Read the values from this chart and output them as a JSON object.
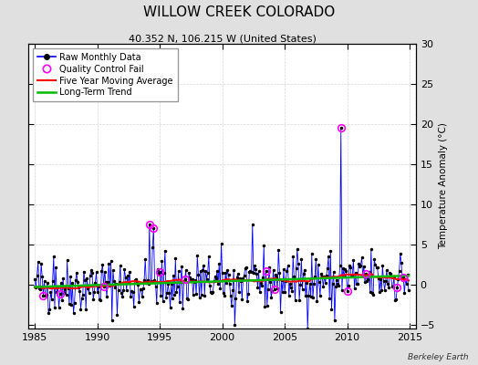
{
  "title": "WILLOW CREEK COLORADO",
  "subtitle": "40.352 N, 106.215 W (United States)",
  "ylabel": "Temperature Anomaly (°C)",
  "watermark": "Berkeley Earth",
  "xlim": [
    1984.5,
    2015.5
  ],
  "ylim": [
    -5.5,
    30
  ],
  "yticks": [
    -5,
    0,
    5,
    10,
    15,
    20,
    25,
    30
  ],
  "xticks": [
    1985,
    1990,
    1995,
    2000,
    2005,
    2010,
    2015
  ],
  "bg_color": "#e0e0e0",
  "plot_bg_color": "#ffffff",
  "raw_color": "#0000ff",
  "dot_color": "#000000",
  "qc_color": "#ff00ff",
  "moving_avg_color": "#ff0000",
  "trend_color": "#00bb00",
  "seed": 42,
  "n_months": 360,
  "start_year": 1985.0,
  "title_fontsize": 11,
  "subtitle_fontsize": 8,
  "legend_fontsize": 7,
  "tick_fontsize": 8
}
